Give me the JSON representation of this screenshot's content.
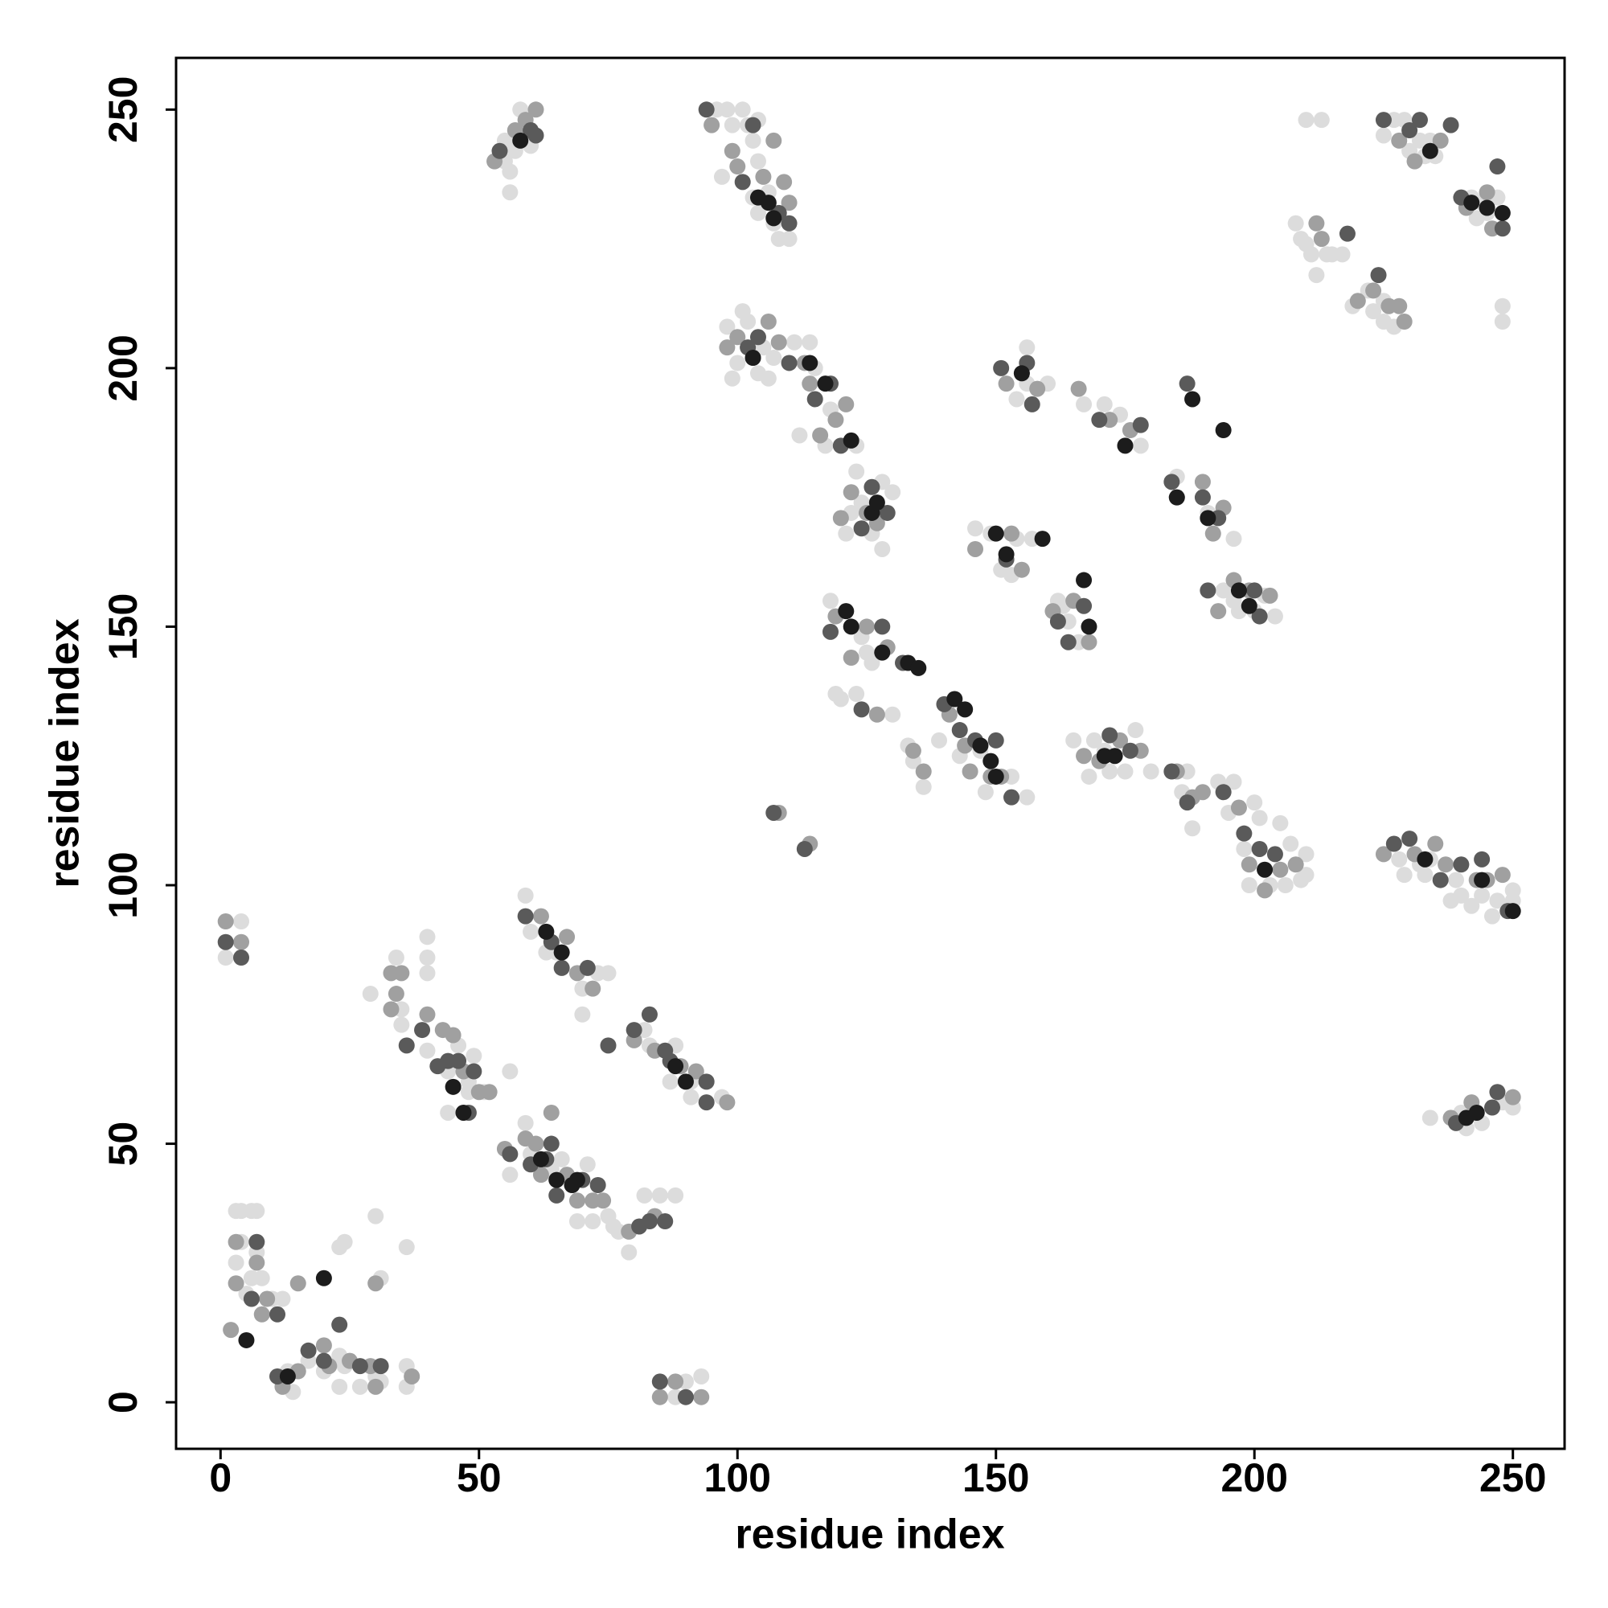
{
  "chart_data": {
    "type": "scatter",
    "xlabel": "residue index",
    "ylabel": "residue index",
    "xlim": [
      -8.6,
      260
    ],
    "ylim": [
      -9,
      260
    ],
    "xticks": [
      0,
      50,
      100,
      150,
      200,
      250
    ],
    "yticks": [
      0,
      50,
      100,
      150,
      200,
      250
    ],
    "grid": false,
    "series": [
      {
        "color": "#dcdcdc",
        "x": [
          1,
          4,
          3,
          4,
          6,
          7,
          4,
          7,
          3,
          6,
          8,
          10,
          12,
          5,
          13,
          14,
          17,
          20,
          23,
          24,
          23,
          27,
          30,
          31,
          36,
          36,
          23,
          24,
          30,
          31,
          36,
          29,
          34,
          35,
          35,
          40,
          40,
          40,
          40,
          44,
          45,
          46,
          48,
          48,
          47,
          49,
          51,
          56,
          44,
          56,
          59,
          60,
          64,
          66,
          68,
          69,
          71,
          72,
          75,
          76,
          77,
          79,
          82,
          85,
          88,
          59,
          60,
          63,
          65,
          70,
          70,
          73,
          75,
          82,
          83,
          87,
          88,
          91,
          91,
          97,
          88,
          90,
          93,
          55,
          55,
          56,
          57,
          58,
          58,
          60,
          56,
          96,
          97,
          98,
          99,
          101,
          102,
          103,
          103,
          104,
          104,
          104,
          106,
          107,
          108,
          110,
          98,
          99,
          100,
          101,
          102,
          104,
          105,
          106,
          107,
          111,
          112,
          114,
          115,
          117,
          118,
          122,
          123,
          121,
          122,
          123,
          124,
          126,
          127,
          128,
          128,
          130,
          118,
          119,
          120,
          121,
          123,
          124,
          125,
          126,
          128,
          130,
          133,
          134,
          136,
          139,
          142,
          143,
          144,
          147,
          148,
          149,
          153,
          156,
          146,
          149,
          151,
          153,
          154,
          157,
          162,
          163,
          164,
          166,
          156,
          156,
          154,
          160,
          167,
          171,
          174,
          175,
          178,
          165,
          168,
          169,
          171,
          172,
          173,
          175,
          177,
          180,
          186,
          187,
          188,
          193,
          195,
          196,
          198,
          199,
          200,
          201,
          203,
          205,
          206,
          207,
          209,
          210,
          210,
          185,
          191,
          196,
          194,
          196,
          197,
          200,
          202,
          204,
          208,
          209,
          210,
          210,
          211,
          212,
          213,
          214,
          215,
          217,
          219,
          222,
          223,
          225,
          225,
          227,
          225,
          227,
          229,
          230,
          232,
          233,
          234,
          235,
          242,
          243,
          244,
          245,
          247,
          248,
          248,
          228,
          229,
          232,
          233,
          234,
          238,
          239,
          240,
          242,
          244,
          246,
          247,
          250,
          250,
          234,
          240,
          241,
          243,
          244,
          248,
          250
        ],
        "y": [
          86,
          93,
          37,
          37,
          37,
          37,
          31,
          29,
          27,
          24,
          24,
          20,
          20,
          21,
          6,
          2,
          8,
          6,
          9,
          7,
          3,
          3,
          5,
          4,
          7,
          3,
          30,
          31,
          36,
          24,
          30,
          79,
          86,
          76,
          73,
          68,
          83,
          86,
          90,
          64,
          61,
          69,
          62,
          60,
          56,
          67,
          60,
          64,
          56,
          44,
          54,
          48,
          45,
          47,
          42,
          35,
          46,
          35,
          36,
          34,
          33,
          29,
          40,
          40,
          40,
          98,
          91,
          87,
          87,
          80,
          75,
          83,
          83,
          72,
          69,
          62,
          69,
          62,
          59,
          59,
          1,
          4,
          5,
          244,
          240,
          234,
          242,
          250,
          244,
          243,
          238,
          250,
          237,
          250,
          247,
          250,
          247,
          233,
          244,
          230,
          240,
          248,
          234,
          228,
          225,
          225,
          208,
          198,
          201,
          211,
          209,
          199,
          204,
          198,
          202,
          205,
          187,
          205,
          200,
          185,
          192,
          186,
          185,
          168,
          172,
          180,
          174,
          168,
          174,
          165,
          178,
          176,
          155,
          137,
          136,
          153,
          137,
          148,
          145,
          143,
          145,
          133,
          127,
          124,
          119,
          128,
          136,
          125,
          134,
          126,
          118,
          124,
          121,
          117,
          169,
          168,
          161,
          160,
          167,
          167,
          155,
          154,
          151,
          147,
          204,
          197,
          194,
          197,
          193,
          193,
          191,
          185,
          185,
          128,
          121,
          128,
          126,
          122,
          125,
          122,
          130,
          122,
          118,
          122,
          111,
          120,
          114,
          120,
          107,
          100,
          116,
          113,
          100,
          112,
          100,
          108,
          101,
          106,
          102,
          179,
          172,
          167,
          157,
          155,
          153,
          153,
          156,
          152,
          228,
          225,
          248,
          224,
          222,
          218,
          248,
          222,
          222,
          222,
          212,
          215,
          211,
          213,
          209,
          208,
          245,
          248,
          248,
          242,
          244,
          241,
          244,
          241,
          233,
          229,
          232,
          230,
          233,
          212,
          209,
          105,
          102,
          104,
          102,
          105,
          97,
          101,
          98,
          96,
          98,
          94,
          97,
          97,
          99,
          55,
          56,
          53,
          56,
          54,
          58,
          57
        ]
      },
      {
        "color": "#a0a0a0",
        "x": [
          1,
          4,
          3,
          7,
          3,
          9,
          8,
          2,
          12,
          15,
          20,
          21,
          25,
          29,
          30,
          37,
          15,
          30,
          33,
          35,
          34,
          33,
          40,
          43,
          45,
          47,
          50,
          52,
          55,
          59,
          61,
          62,
          67,
          69,
          72,
          74,
          79,
          84,
          64,
          62,
          67,
          69,
          72,
          80,
          84,
          89,
          92,
          98,
          85,
          88,
          93,
          53,
          57,
          59,
          61,
          95,
          99,
          100,
          105,
          109,
          110,
          107,
          98,
          100,
          103,
          106,
          108,
          113,
          114,
          116,
          119,
          121,
          120,
          122,
          125,
          127,
          119,
          122,
          125,
          127,
          129,
          134,
          136,
          141,
          144,
          145,
          149,
          151,
          146,
          153,
          155,
          161,
          165,
          168,
          152,
          155,
          158,
          166,
          172,
          176,
          167,
          170,
          174,
          178,
          185,
          188,
          190,
          197,
          199,
          202,
          205,
          208,
          185,
          190,
          192,
          194,
          193,
          196,
          199,
          203,
          212,
          213,
          220,
          223,
          226,
          228,
          229,
          228,
          231,
          236,
          241,
          245,
          246,
          225,
          231,
          235,
          237,
          243,
          245,
          248,
          238,
          242,
          250,
          114,
          108
        ],
        "y": [
          93,
          89,
          31,
          27,
          23,
          20,
          17,
          14,
          3,
          6,
          11,
          7,
          8,
          7,
          3,
          5,
          23,
          23,
          83,
          83,
          79,
          76,
          75,
          72,
          71,
          64,
          60,
          60,
          49,
          51,
          50,
          44,
          44,
          39,
          39,
          39,
          33,
          36,
          56,
          94,
          90,
          83,
          80,
          70,
          68,
          65,
          64,
          58,
          1,
          4,
          1,
          240,
          246,
          248,
          250,
          247,
          242,
          239,
          237,
          236,
          232,
          244,
          204,
          206,
          202,
          209,
          205,
          201,
          197,
          187,
          190,
          193,
          171,
          176,
          172,
          170,
          152,
          144,
          150,
          133,
          146,
          126,
          122,
          133,
          127,
          122,
          121,
          121,
          165,
          168,
          161,
          153,
          155,
          147,
          197,
          199,
          196,
          196,
          190,
          188,
          125,
          124,
          128,
          126,
          122,
          117,
          118,
          115,
          104,
          99,
          103,
          104,
          175,
          178,
          168,
          173,
          153,
          159,
          157,
          156,
          228,
          225,
          213,
          215,
          212,
          212,
          209,
          244,
          240,
          244,
          231,
          234,
          227,
          106,
          106,
          108,
          104,
          101,
          101,
          102,
          55,
          58,
          59,
          108,
          114
        ]
      },
      {
        "color": "#5a5a5a",
        "x": [
          1,
          4,
          7,
          6,
          11,
          11,
          17,
          20,
          23,
          27,
          31,
          36,
          39,
          42,
          44,
          46,
          49,
          48,
          56,
          60,
          63,
          64,
          65,
          70,
          73,
          81,
          83,
          86,
          59,
          64,
          66,
          71,
          75,
          80,
          83,
          86,
          87,
          94,
          94,
          85,
          90,
          54,
          60,
          61,
          94,
          101,
          103,
          108,
          110,
          102,
          104,
          110,
          115,
          120,
          118,
          124,
          126,
          129,
          118,
          124,
          128,
          132,
          140,
          143,
          146,
          150,
          153,
          152,
          162,
          164,
          167,
          151,
          156,
          157,
          170,
          178,
          172,
          176,
          184,
          187,
          194,
          198,
          201,
          204,
          184,
          190,
          193,
          187,
          191,
          200,
          201,
          218,
          224,
          225,
          230,
          232,
          238,
          240,
          247,
          248,
          227,
          230,
          236,
          240,
          244,
          249,
          239,
          246,
          247,
          113,
          107
        ],
        "y": [
          89,
          86,
          31,
          20,
          17,
          5,
          10,
          8,
          15,
          7,
          7,
          69,
          72,
          65,
          66,
          66,
          64,
          56,
          48,
          46,
          47,
          50,
          40,
          43,
          42,
          34,
          35,
          35,
          94,
          89,
          84,
          84,
          69,
          72,
          75,
          68,
          66,
          62,
          58,
          4,
          1,
          242,
          246,
          245,
          250,
          236,
          247,
          230,
          228,
          204,
          206,
          201,
          194,
          185,
          197,
          169,
          177,
          172,
          149,
          134,
          150,
          143,
          135,
          130,
          128,
          128,
          117,
          163,
          151,
          147,
          154,
          200,
          201,
          193,
          190,
          189,
          129,
          126,
          122,
          116,
          118,
          110,
          107,
          106,
          178,
          175,
          171,
          197,
          157,
          157,
          152,
          226,
          218,
          248,
          246,
          248,
          247,
          233,
          239,
          227,
          108,
          109,
          101,
          104,
          105,
          95,
          54,
          57,
          60,
          107,
          114
        ]
      },
      {
        "color": "#1c1c1c",
        "x": [
          5,
          13,
          20,
          45,
          47,
          62,
          65,
          68,
          69,
          63,
          66,
          88,
          90,
          58,
          104,
          106,
          107,
          103,
          114,
          117,
          122,
          126,
          127,
          121,
          122,
          128,
          133,
          135,
          142,
          144,
          147,
          149,
          150,
          152,
          155,
          150,
          159,
          167,
          168,
          171,
          175,
          173,
          188,
          194,
          185,
          191,
          197,
          199,
          202,
          233,
          234,
          245,
          242,
          241,
          243,
          244,
          248,
          250
        ],
        "y": [
          12,
          5,
          24,
          61,
          56,
          47,
          43,
          42,
          43,
          91,
          87,
          65,
          62,
          244,
          233,
          232,
          229,
          202,
          201,
          197,
          186,
          172,
          174,
          153,
          150,
          145,
          143,
          142,
          136,
          134,
          127,
          124,
          121,
          164,
          199,
          168,
          167,
          159,
          150,
          125,
          185,
          125,
          194,
          188,
          175,
          171,
          157,
          154,
          103,
          105,
          242,
          231,
          232,
          55,
          56,
          101,
          230,
          95
        ]
      }
    ]
  }
}
